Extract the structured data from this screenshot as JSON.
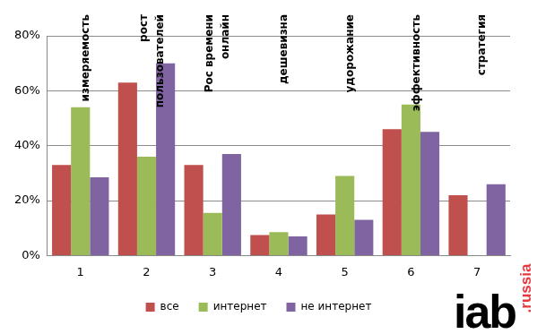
{
  "chart_data": {
    "type": "bar",
    "categories": [
      "1",
      "2",
      "3",
      "4",
      "5",
      "6",
      "7"
    ],
    "series": [
      {
        "name": "все",
        "color": "#c0504d",
        "values": [
          33,
          63,
          33,
          7.5,
          15,
          46,
          22
        ]
      },
      {
        "name": "интернет",
        "color": "#9bbb59",
        "values": [
          54,
          36,
          15.5,
          8.5,
          29,
          55,
          null
        ]
      },
      {
        "name": "не интернет",
        "color": "#8064a2",
        "values": [
          28.5,
          70,
          37,
          7,
          13,
          45,
          26
        ]
      }
    ],
    "ylim": [
      0,
      80
    ],
    "yticks": [
      {
        "value": 0,
        "label": "0%"
      },
      {
        "value": 20,
        "label": "20%"
      },
      {
        "value": 40,
        "label": "40%"
      },
      {
        "value": 60,
        "label": "60%"
      },
      {
        "value": 80,
        "label": "80%"
      }
    ],
    "grid": true,
    "legend": "bottom",
    "annotations": [
      {
        "category": "1",
        "lines": [
          "измеряемость"
        ]
      },
      {
        "category": "2",
        "lines": [
          "рост",
          "пользователей"
        ]
      },
      {
        "category": "3",
        "lines": [
          "Рос времени",
          "онлайн"
        ]
      },
      {
        "category": "4",
        "lines": [
          "дешевизна"
        ]
      },
      {
        "category": "5",
        "lines": [
          "удорожание"
        ]
      },
      {
        "category": "6",
        "lines": [
          "эффективность"
        ]
      },
      {
        "category": "7",
        "lines": [
          "стратегия"
        ]
      }
    ],
    "logo": {
      "text": "iab",
      "suffix": ".russia"
    }
  }
}
